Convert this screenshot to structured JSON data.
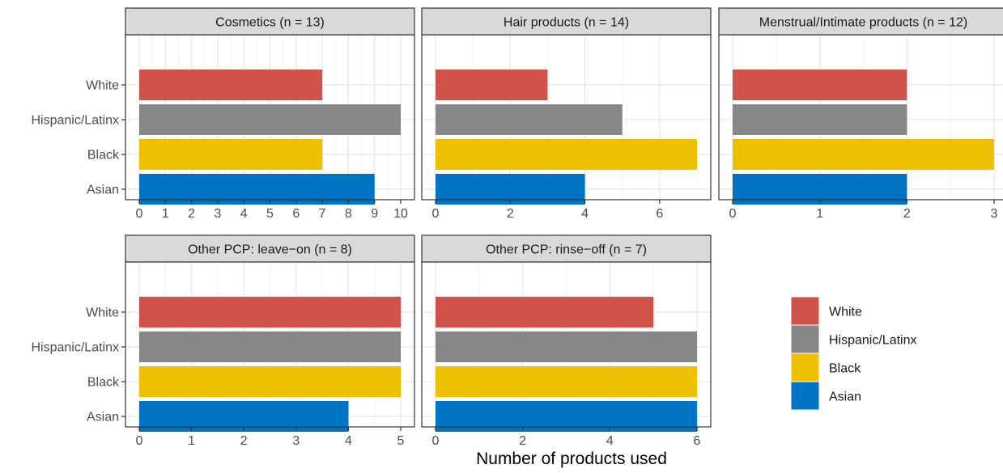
{
  "chart_data": {
    "type": "bar",
    "orientation": "horizontal",
    "layout": "facet-grid",
    "xlabel": "Number of products used",
    "ylabel": "",
    "categories": [
      "White",
      "Hispanic/Latinx",
      "Black",
      "Asian"
    ],
    "colors": {
      "White": "#D0534B",
      "Hispanic/Latinx": "#878787",
      "Black": "#EFC000",
      "Asian": "#0073C2"
    },
    "legend": {
      "position": "right",
      "entries": [
        "White",
        "Hispanic/Latinx",
        "Black",
        "Asian"
      ]
    },
    "grid": true,
    "panels": [
      {
        "title": "Cosmetics (n = 13)",
        "values": [
          7,
          10,
          7,
          9
        ],
        "xlim": [
          0,
          10
        ],
        "xticks": [
          0,
          1,
          2,
          3,
          4,
          5,
          6,
          7,
          8,
          9,
          10
        ]
      },
      {
        "title": "Hair products (n = 14)",
        "values": [
          3,
          5,
          7,
          4
        ],
        "xlim": [
          0,
          7
        ],
        "xticks": [
          0,
          2,
          4,
          6
        ]
      },
      {
        "title": "Menstrual/Intimate products (n = 12)",
        "values": [
          2,
          2,
          3,
          2
        ],
        "xlim": [
          0,
          3
        ],
        "xticks": [
          0,
          1,
          2,
          3
        ]
      },
      {
        "title": "Other PCP: leave−on (n = 8)",
        "values": [
          5,
          5,
          5,
          4
        ],
        "xlim": [
          0,
          5
        ],
        "xticks": [
          0,
          1,
          2,
          3,
          4,
          5
        ]
      },
      {
        "title": "Other PCP: rinse−off (n = 7)",
        "values": [
          5,
          6,
          6,
          6
        ],
        "xlim": [
          0,
          6
        ],
        "xticks": [
          0,
          2,
          4,
          6
        ]
      }
    ]
  }
}
